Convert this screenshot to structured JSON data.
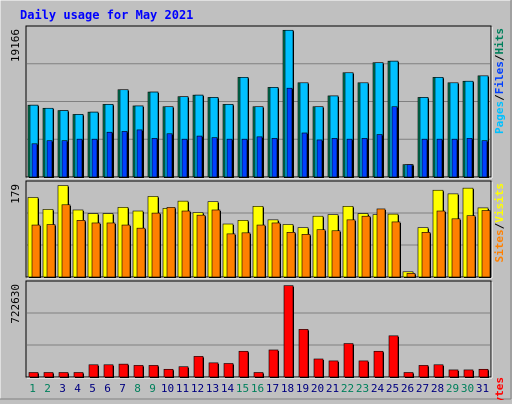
{
  "chart_data": [
    {
      "type": "bar",
      "title": "Daily usage for May 2021",
      "categories": [
        "1",
        "2",
        "3",
        "4",
        "5",
        "6",
        "7",
        "8",
        "9",
        "10",
        "11",
        "12",
        "13",
        "14",
        "15",
        "16",
        "17",
        "18",
        "19",
        "20",
        "21",
        "22",
        "23",
        "24",
        "25",
        "26",
        "27",
        "28",
        "29",
        "30",
        "31"
      ],
      "weekend_categories": [
        "1",
        "2",
        "8",
        "9",
        "15",
        "16",
        "22",
        "23",
        "29",
        "30"
      ],
      "ymax_label": "19166",
      "ylim": [
        0,
        19166
      ],
      "right_label": [
        "Pages",
        "/",
        "Files",
        "/",
        "Hits"
      ],
      "series": [
        {
          "name": "Hits",
          "values": [
            9300,
            8900,
            8600,
            8100,
            8400,
            9400,
            11300,
            9200,
            11000,
            9100,
            10400,
            10600,
            10300,
            9400,
            12900,
            9100,
            11600,
            19000,
            12200,
            9100,
            10500,
            13500,
            12200,
            14800,
            15000,
            1600,
            10300,
            12900,
            12200,
            12400,
            13100
          ]
        },
        {
          "name": "Files",
          "values": [
            9300,
            8900,
            8600,
            8100,
            8400,
            9400,
            11300,
            9200,
            11000,
            9100,
            10400,
            10600,
            10300,
            9400,
            12900,
            9100,
            11600,
            19000,
            12200,
            9100,
            10500,
            13500,
            12200,
            14800,
            15000,
            1600,
            10300,
            12900,
            12200,
            12400,
            13100
          ]
        },
        {
          "name": "Pages",
          "values": [
            4300,
            4700,
            4700,
            4900,
            4900,
            5800,
            5900,
            6100,
            5000,
            5600,
            4900,
            5300,
            5100,
            4900,
            4900,
            5200,
            5000,
            11500,
            5700,
            4800,
            5000,
            4900,
            5000,
            5500,
            9100,
            1600,
            4900,
            4900,
            4900,
            5000,
            4700
          ]
        }
      ]
    },
    {
      "type": "bar",
      "ymax_label": "179",
      "ylim": [
        0,
        179
      ],
      "right_label": [
        "Sites",
        "/",
        "Visits"
      ],
      "series": [
        {
          "name": "Visits",
          "values": [
            153,
            130,
            176,
            129,
            122,
            122,
            134,
            127,
            155,
            132,
            146,
            124,
            145,
            102,
            109,
            136,
            110,
            101,
            95,
            117,
            120,
            136,
            122,
            120,
            121,
            10,
            95,
            167,
            160,
            171,
            133
          ]
        },
        {
          "name": "Sites",
          "values": [
            100,
            101,
            139,
            109,
            104,
            104,
            100,
            94,
            123,
            134,
            127,
            119,
            129,
            83,
            85,
            100,
            104,
            86,
            82,
            91,
            89,
            110,
            117,
            131,
            106,
            7,
            86,
            127,
            112,
            118,
            128
          ]
        }
      ]
    },
    {
      "type": "bar",
      "ymax_label": "722630",
      "ylim": [
        0,
        722630
      ],
      "right_label": [
        "KBytes"
      ],
      "series": [
        {
          "name": "KBytes",
          "values": [
            35000,
            35000,
            35000,
            35000,
            95000,
            95000,
            100000,
            90000,
            90000,
            60000,
            80000,
            160000,
            110000,
            105000,
            200000,
            35000,
            210000,
            710000,
            370000,
            140000,
            125000,
            260000,
            125000,
            200000,
            320000,
            35000,
            90000,
            95000,
            55000,
            55000,
            60000
          ]
        }
      ]
    }
  ],
  "colors": {
    "hits": "#00805c",
    "files": "#0040ff",
    "pages": "#00c0ff",
    "visits": "#ffff00",
    "sites": "#ff8000",
    "kbytes": "#ff0000",
    "title": "#0000ff",
    "weekday_label": "#000080",
    "weekend_label": "#00805c"
  }
}
